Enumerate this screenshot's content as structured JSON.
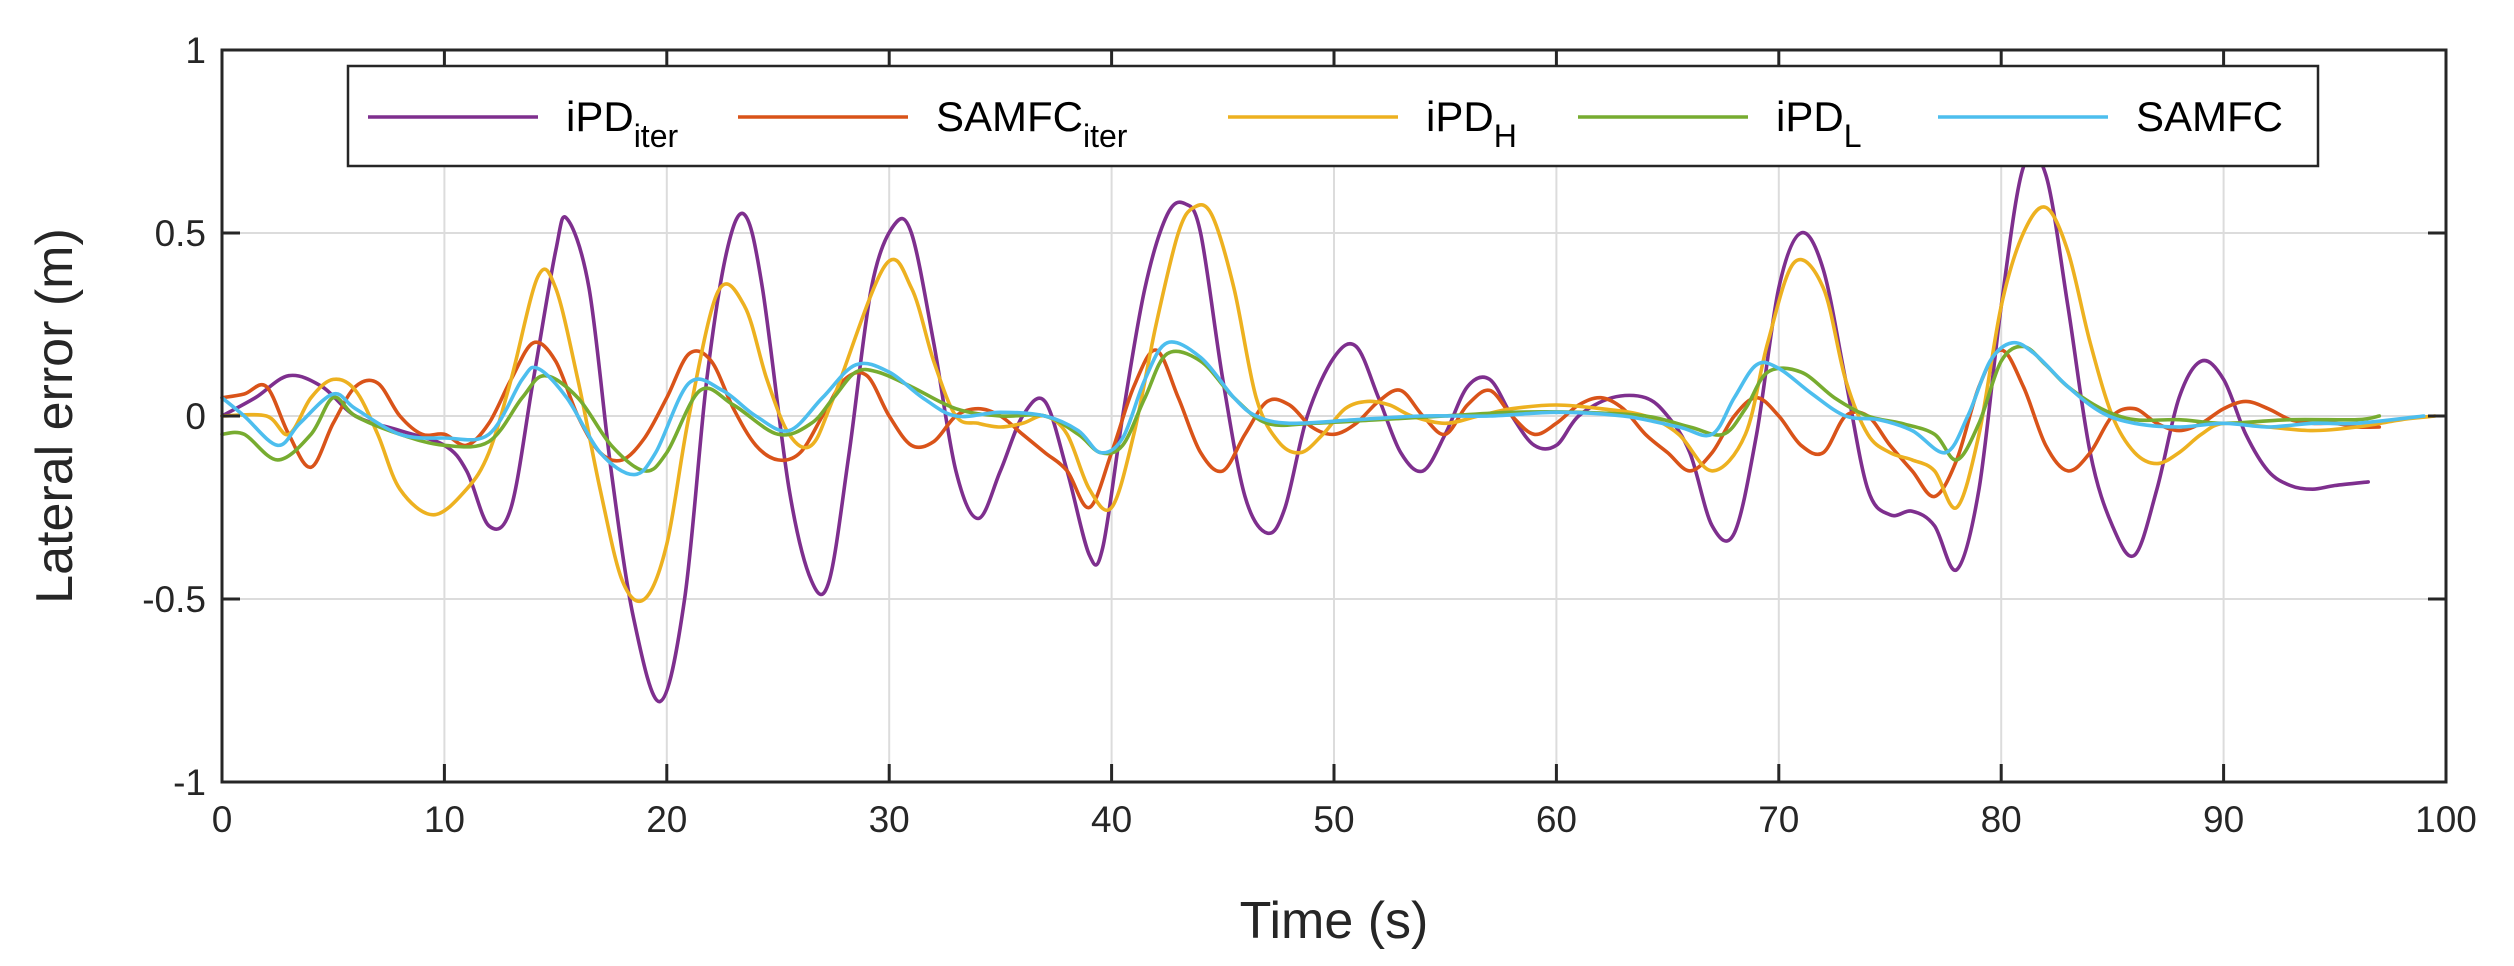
{
  "chart_data": {
    "type": "line",
    "title": "",
    "xlabel": "Time (s)",
    "ylabel": "Lateral error (m)",
    "xlim": [
      0,
      100
    ],
    "ylim": [
      -1,
      1
    ],
    "xticks": [
      0,
      10,
      20,
      30,
      40,
      50,
      60,
      70,
      80,
      90,
      100
    ],
    "yticks": [
      -1,
      -0.5,
      0,
      0.5,
      1
    ],
    "xtick_labels": [
      "0",
      "10",
      "20",
      "30",
      "40",
      "50",
      "60",
      "70",
      "80",
      "90",
      "100"
    ],
    "ytick_labels": [
      "-1",
      "-0.5",
      "0",
      "0.5",
      "1"
    ],
    "grid": true,
    "legend_position": "top",
    "series": [
      {
        "name": "iPDiter",
        "label_main": "iPD",
        "label_sub": "iter",
        "color": "#7E2F8E",
        "x": [
          0,
          1.5,
          3,
          4.5,
          6,
          8,
          10,
          11,
          12,
          13,
          14,
          15,
          15.5,
          16.5,
          17.5,
          18.5,
          19.7,
          20.8,
          21.8,
          22.7,
          23.5,
          24.3,
          25.5,
          26.5,
          27.3,
          28.2,
          29.2,
          30.2,
          31,
          32,
          33,
          34,
          35,
          36,
          37,
          38,
          39,
          39.6,
          40.5,
          41.5,
          42.5,
          43.3,
          44,
          45,
          46,
          47,
          47.8,
          48.8,
          50,
          51,
          52,
          53,
          54,
          55,
          56,
          57,
          58,
          59,
          60,
          61,
          62.5,
          64,
          65,
          66,
          67,
          68,
          69,
          70,
          71,
          72,
          73,
          74,
          75,
          76,
          77,
          78,
          79,
          80,
          81,
          82,
          83,
          84,
          85,
          86,
          87,
          88,
          89,
          90,
          91,
          92,
          93,
          94,
          95,
          96.5
        ],
        "values": [
          0.0,
          0.05,
          0.11,
          0.08,
          0.0,
          -0.04,
          -0.08,
          -0.15,
          -0.3,
          -0.25,
          0.1,
          0.45,
          0.54,
          0.35,
          -0.15,
          -0.55,
          -0.78,
          -0.5,
          0.1,
          0.45,
          0.55,
          0.35,
          -0.2,
          -0.45,
          -0.45,
          -0.1,
          0.35,
          0.52,
          0.5,
          0.2,
          -0.15,
          -0.28,
          -0.15,
          0.0,
          0.04,
          -0.15,
          -0.38,
          -0.36,
          0.0,
          0.35,
          0.55,
          0.58,
          0.5,
          0.1,
          -0.22,
          -0.32,
          -0.25,
          0.0,
          0.16,
          0.19,
          0.05,
          -0.1,
          -0.15,
          -0.05,
          0.08,
          0.1,
          0.0,
          -0.08,
          -0.08,
          0.0,
          0.05,
          0.05,
          0.0,
          -0.1,
          -0.3,
          -0.32,
          -0.05,
          0.35,
          0.5,
          0.4,
          0.1,
          -0.2,
          -0.27,
          -0.26,
          -0.3,
          -0.42,
          -0.2,
          0.3,
          0.68,
          0.66,
          0.3,
          -0.1,
          -0.3,
          -0.38,
          -0.2,
          0.05,
          0.15,
          0.1,
          -0.05,
          -0.15,
          -0.19,
          -0.2,
          -0.19,
          -0.18
        ]
      },
      {
        "name": "SAMFCiter",
        "label_main": "SAMFC",
        "label_sub": "iter",
        "color": "#D95319",
        "x": [
          0,
          1,
          2,
          3,
          4,
          5,
          6,
          7,
          8,
          9,
          10,
          11,
          12,
          13,
          14,
          15,
          16,
          17,
          18,
          19,
          20,
          21,
          22,
          23,
          24,
          25,
          26,
          27,
          28,
          29,
          30,
          31,
          32,
          33,
          34,
          35,
          36,
          37,
          38,
          39,
          40,
          41,
          42,
          43,
          44,
          45,
          46,
          47,
          48,
          49,
          50,
          51,
          52,
          53,
          54,
          55,
          56,
          57,
          58,
          59,
          60,
          61,
          62,
          63,
          64,
          65,
          66,
          67,
          68,
          69,
          70,
          71,
          72,
          73,
          74,
          75,
          76,
          77,
          78,
          79,
          80,
          81,
          82,
          83,
          84,
          85,
          86,
          87,
          88,
          89,
          90,
          91,
          92,
          93,
          94,
          95,
          96,
          97
        ],
        "values": [
          0.05,
          0.06,
          0.08,
          -0.05,
          -0.14,
          -0.02,
          0.08,
          0.09,
          0.0,
          -0.05,
          -0.05,
          -0.08,
          -0.02,
          0.1,
          0.2,
          0.15,
          0.0,
          -0.1,
          -0.12,
          -0.06,
          0.05,
          0.17,
          0.15,
          0.02,
          -0.08,
          -0.12,
          -0.1,
          0.0,
          0.1,
          0.11,
          0.0,
          -0.08,
          -0.07,
          0.0,
          0.02,
          0.0,
          -0.05,
          -0.1,
          -0.15,
          -0.25,
          -0.1,
          0.08,
          0.18,
          0.05,
          -0.1,
          -0.15,
          -0.05,
          0.04,
          0.03,
          -0.03,
          -0.05,
          -0.02,
          0.04,
          0.07,
          0.0,
          -0.05,
          0.03,
          0.07,
          0.0,
          -0.05,
          -0.02,
          0.03,
          0.05,
          0.02,
          -0.05,
          -0.1,
          -0.15,
          -0.1,
          0.0,
          0.05,
          0.0,
          -0.08,
          -0.1,
          0.0,
          0.0,
          -0.08,
          -0.15,
          -0.22,
          -0.12,
          0.08,
          0.18,
          0.08,
          -0.08,
          -0.15,
          -0.1,
          0.0,
          0.02,
          -0.02,
          -0.04,
          -0.02,
          0.02,
          0.04,
          0.02,
          -0.01,
          -0.02,
          -0.02,
          -0.03,
          -0.03
        ]
      },
      {
        "name": "iPDH",
        "label_main": "iPD",
        "label_sub": "H",
        "color": "#EDB120",
        "x": [
          0,
          2,
          3,
          4,
          5,
          6,
          7,
          8,
          9.5,
          11,
          12,
          13,
          14.2,
          15,
          16,
          17,
          18,
          19,
          20,
          21,
          22.3,
          23.5,
          24.5,
          25.5,
          26.5,
          27.5,
          29.8,
          31,
          32,
          33,
          34,
          35,
          36,
          37,
          38,
          39,
          40,
          41,
          42,
          43,
          43.7,
          44.5,
          45.5,
          46.5,
          47.5,
          48.5,
          49.5,
          50.5,
          51.5,
          52.5,
          53.5,
          55,
          56.5,
          58,
          60,
          62,
          64,
          65.5,
          67,
          68.5,
          69.5,
          70.7,
          72,
          73,
          74,
          75,
          76,
          77,
          78,
          79,
          80,
          81,
          82,
          83,
          84,
          85,
          86,
          87,
          88,
          89,
          90,
          92,
          94,
          96,
          98,
          99.5
        ],
        "values": [
          0.0,
          0.0,
          -0.05,
          0.05,
          0.1,
          0.07,
          -0.05,
          -0.2,
          -0.27,
          -0.2,
          -0.1,
          0.1,
          0.38,
          0.35,
          0.1,
          -0.2,
          -0.45,
          -0.5,
          -0.35,
          0.0,
          0.34,
          0.3,
          0.1,
          -0.05,
          -0.08,
          0.05,
          0.41,
          0.35,
          0.15,
          0.0,
          -0.02,
          -0.03,
          -0.02,
          0.0,
          -0.05,
          -0.2,
          -0.25,
          -0.05,
          0.25,
          0.5,
          0.57,
          0.55,
          0.35,
          0.05,
          -0.07,
          -0.1,
          -0.05,
          0.02,
          0.04,
          0.03,
          0.0,
          -0.02,
          0.0,
          0.02,
          0.03,
          0.02,
          0.0,
          -0.05,
          -0.15,
          -0.05,
          0.2,
          0.42,
          0.35,
          0.1,
          -0.05,
          -0.1,
          -0.12,
          -0.15,
          -0.25,
          -0.05,
          0.3,
          0.5,
          0.57,
          0.45,
          0.2,
          0.0,
          -0.1,
          -0.13,
          -0.1,
          -0.05,
          -0.02,
          -0.03,
          -0.04,
          -0.03,
          -0.01,
          0.0
        ]
      },
      {
        "name": "iPDL",
        "label_main": "iPD",
        "label_sub": "L",
        "color": "#77AC30",
        "x": [
          0,
          1,
          2.5,
          4,
          5,
          6,
          8,
          10,
          12,
          13.5,
          14.5,
          16,
          17.5,
          19,
          20,
          21.5,
          23,
          25,
          26.5,
          27.5,
          28.5,
          29.5,
          31,
          33,
          35,
          37,
          38.5,
          39.5,
          40.5,
          41.5,
          42.5,
          44,
          45.5,
          47,
          49,
          52,
          55,
          58,
          61,
          64,
          66,
          67.5,
          68.5,
          69.5,
          71,
          72.5,
          74,
          75.5,
          77,
          78,
          79,
          80,
          81,
          82,
          83,
          84.5,
          86,
          88,
          90,
          93,
          96,
          97
        ],
        "values": [
          -0.05,
          -0.05,
          -0.12,
          -0.05,
          0.05,
          0.0,
          -0.05,
          -0.08,
          -0.07,
          0.05,
          0.11,
          0.05,
          -0.08,
          -0.15,
          -0.1,
          0.07,
          0.03,
          -0.05,
          -0.02,
          0.05,
          0.12,
          0.12,
          0.08,
          0.02,
          0.0,
          0.0,
          -0.05,
          -0.1,
          -0.08,
          0.05,
          0.17,
          0.15,
          0.05,
          -0.02,
          -0.02,
          -0.01,
          0.0,
          0.01,
          0.01,
          0.0,
          -0.03,
          -0.05,
          0.02,
          0.12,
          0.12,
          0.05,
          0.0,
          -0.02,
          -0.05,
          -0.12,
          -0.02,
          0.15,
          0.19,
          0.14,
          0.08,
          0.02,
          -0.01,
          -0.01,
          -0.02,
          -0.01,
          -0.01,
          0.0
        ]
      },
      {
        "name": "SAMFC",
        "label_main": "SAMFC",
        "label_sub": "",
        "color": "#4DBEEE",
        "x": [
          0,
          1,
          2.5,
          3.5,
          5,
          6,
          8,
          10,
          12,
          13.5,
          14.2,
          15.5,
          17,
          18.5,
          19.5,
          21,
          22.5,
          24,
          25.5,
          27,
          28.5,
          30,
          31.5,
          33,
          35,
          37,
          38.5,
          39.5,
          40.5,
          41.5,
          42.5,
          44,
          45.5,
          46.5,
          48,
          51,
          54,
          57,
          60,
          63,
          65.5,
          67,
          68,
          69,
          70,
          71.5,
          73,
          74.5,
          76,
          77.5,
          78.5,
          79.5,
          80.5,
          81.5,
          83,
          84.5,
          86,
          88,
          90,
          92,
          94,
          96,
          99
        ],
        "values": [
          0.05,
          0.0,
          -0.08,
          -0.02,
          0.06,
          0.02,
          -0.05,
          -0.06,
          -0.05,
          0.1,
          0.13,
          0.05,
          -0.1,
          -0.16,
          -0.1,
          0.09,
          0.07,
          0.0,
          -0.04,
          0.05,
          0.14,
          0.12,
          0.05,
          0.0,
          0.01,
          0.0,
          -0.04,
          -0.1,
          -0.06,
          0.1,
          0.2,
          0.16,
          0.05,
          0.0,
          -0.02,
          -0.01,
          0.0,
          0.0,
          0.01,
          0.0,
          -0.03,
          -0.05,
          0.05,
          0.14,
          0.13,
          0.06,
          0.0,
          -0.01,
          -0.04,
          -0.1,
          0.0,
          0.15,
          0.2,
          0.17,
          0.08,
          0.01,
          -0.02,
          -0.03,
          -0.02,
          -0.03,
          -0.02,
          -0.02,
          0.0
        ]
      }
    ]
  }
}
